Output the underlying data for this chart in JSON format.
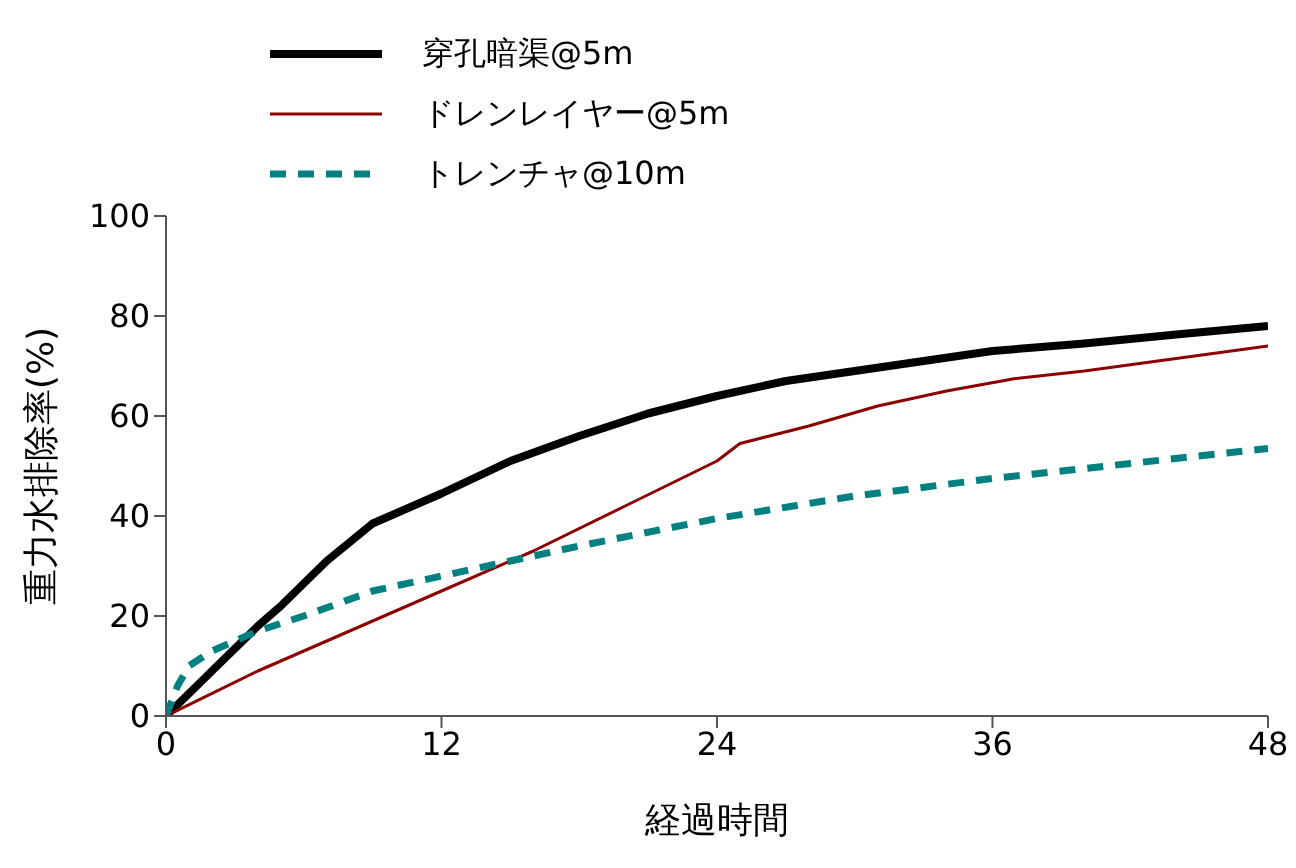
{
  "chart_data": {
    "type": "line",
    "xlabel": "経過時間",
    "ylabel": "重力水排除率(%)",
    "xlim": [
      0,
      48
    ],
    "xticks": [
      0,
      12,
      24,
      36,
      48
    ],
    "ylim": [
      0,
      100
    ],
    "yticks": [
      0,
      20,
      40,
      60,
      80,
      100
    ],
    "grid": false,
    "legend": "top left",
    "marker": "none",
    "series": [
      {
        "name": "穿孔暗渠@5m",
        "color": "#000000",
        "line_style": "solid",
        "x": [
          0,
          2,
          4,
          5,
          7,
          9,
          12,
          15,
          18,
          21,
          24,
          27,
          30,
          33,
          36,
          40,
          44,
          48
        ],
        "values": [
          0,
          9,
          18,
          22,
          31,
          38.5,
          44.5,
          51,
          56,
          60.5,
          64,
          67,
          69,
          71,
          73,
          74.5,
          76.3,
          78
        ]
      },
      {
        "name": "ドレンレイヤー@5m",
        "color": "#8b0000",
        "line_style": "solid",
        "x": [
          0,
          4,
          6,
          8,
          12,
          16,
          20,
          24,
          25,
          28,
          31,
          34,
          37,
          40,
          44,
          48
        ],
        "values": [
          0,
          9,
          13,
          17,
          25,
          33,
          42,
          51,
          54.5,
          58,
          62,
          65,
          67.5,
          69,
          71.5,
          74
        ]
      },
      {
        "name": "トレンチャ@10m",
        "color": "#008080",
        "line_style": "dashed",
        "x": [
          0,
          0.5,
          1,
          2,
          4,
          6,
          9,
          12,
          15,
          18,
          24,
          30,
          36,
          42,
          48
        ],
        "values": [
          0,
          6,
          10,
          13,
          17,
          20,
          25,
          28,
          31,
          34,
          39.5,
          44,
          47.5,
          50.5,
          53.5
        ]
      }
    ]
  }
}
